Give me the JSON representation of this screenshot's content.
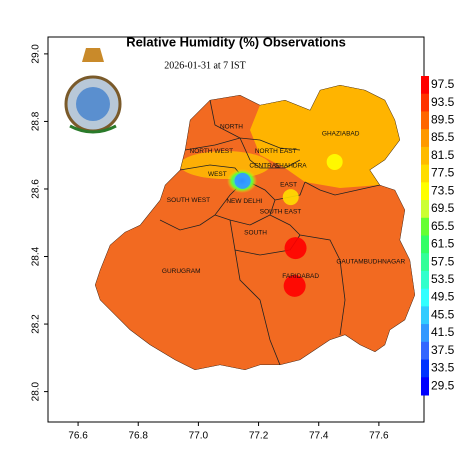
{
  "chart_data": {
    "type": "map",
    "title": "Relative Humidity (%) Observations",
    "subtitle": "2026-01-31 at 7 IST",
    "xlim": [
      76.5,
      77.75
    ],
    "ylim": [
      27.91,
      29.05
    ],
    "xticks": [
      76.6,
      76.8,
      {
        "value": 77,
        "label": "77.0"
      },
      77.2,
      77.4,
      77.6
    ],
    "yticks": [
      {
        "value": 28,
        "label": "28.0"
      },
      28.2,
      28.4,
      28.6,
      28.8,
      {
        "value": 29,
        "label": "29.0"
      }
    ],
    "colorbar": {
      "ticks": [
        97.5,
        93.5,
        89.5,
        85.5,
        81.5,
        77.5,
        73.5,
        69.5,
        65.5,
        61.5,
        57.5,
        53.5,
        49.5,
        45.5,
        41.5,
        37.5,
        33.5,
        29.5
      ],
      "colors": [
        "#ff0000",
        "#ff3300",
        "#ff6600",
        "#ff9900",
        "#ffbb00",
        "#ffdd00",
        "#ffff00",
        "#ccff33",
        "#66ff33",
        "#33ff66",
        "#33ff99",
        "#33ffcc",
        "#33ffff",
        "#33ccff",
        "#3399ff",
        "#3366ff",
        "#0033ff",
        "#0000ff"
      ]
    },
    "stations": {
      "x": [
        77.147,
        77.323,
        77.32,
        77.453,
        77.307
      ],
      "y": [
        28.624,
        28.425,
        28.313,
        28.68,
        28.576
      ],
      "values": [
        40,
        97.5,
        97.5,
        75,
        77
      ]
    },
    "labels": [
      {
        "text": "NORTH",
        "lon": 77.11,
        "lat": 28.784
      },
      {
        "text": "NORTH WEST",
        "lon": 77.043,
        "lat": 28.712
      },
      {
        "text": "NORTH EAST",
        "lon": 77.257,
        "lat": 28.712
      },
      {
        "text": "CENTRAL",
        "lon": 77.22,
        "lat": 28.668
      },
      {
        "text": "SHAHDRA",
        "lon": 77.307,
        "lat": 28.668
      },
      {
        "text": "WEST",
        "lon": 77.063,
        "lat": 28.644
      },
      {
        "text": "EAST",
        "lon": 77.3,
        "lat": 28.612
      },
      {
        "text": "SOUTH WEST",
        "lon": 76.967,
        "lat": 28.567
      },
      {
        "text": "NEW DELHI",
        "lon": 77.153,
        "lat": 28.564
      },
      {
        "text": "SOUTH EAST",
        "lon": 77.273,
        "lat": 28.532
      },
      {
        "text": "SOUTH",
        "lon": 77.19,
        "lat": 28.47
      },
      {
        "text": "GHAZIABAD",
        "lon": 77.473,
        "lat": 28.763
      },
      {
        "text": "GURUGRAM",
        "lon": 76.943,
        "lat": 28.357
      },
      {
        "text": "FARIDABAD",
        "lon": 77.34,
        "lat": 28.342
      },
      {
        "text": "GAUTAMBUDHNAGAR",
        "lon": 77.573,
        "lat": 28.384
      }
    ]
  }
}
